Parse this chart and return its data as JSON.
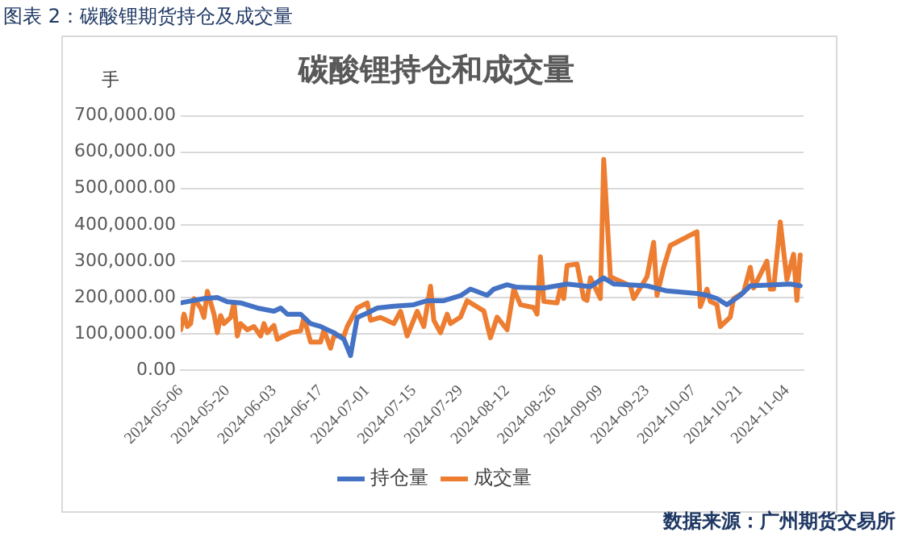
{
  "chart_data": {
    "type": "line",
    "title": "图表 2：碳酸锂期货持仓及成交量",
    "subtitle": "碳酸锂持仓和成交量",
    "ylabel": "手",
    "annotations": [
      "数据来源：广州期货交易所"
    ],
    "xlim": [
      "2024-05-06",
      "2024-11-09"
    ],
    "xticks": [
      "2024-05-06",
      "2024-05-20",
      "2024-06-03",
      "2024-06-17",
      "2024-07-01",
      "2024-07-15",
      "2024-07-29",
      "2024-08-12",
      "2024-08-26",
      "2024-09-09",
      "2024-09-23",
      "2024-10-07",
      "2024-10-21",
      "2024-11-04"
    ],
    "ylim": [
      0,
      700000
    ],
    "yticks": [
      {
        "value": 0,
        "label": "0.00"
      },
      {
        "value": 100000,
        "label": "100,000.00"
      },
      {
        "value": 200000,
        "label": "200,000.00"
      },
      {
        "value": 300000,
        "label": "300,000.00"
      },
      {
        "value": 400000,
        "label": "400,000.00"
      },
      {
        "value": 500000,
        "label": "500,000.00"
      },
      {
        "value": 600000,
        "label": "600,000.00"
      },
      {
        "value": 700000,
        "label": "700,000.00"
      }
    ],
    "grid": "y",
    "legend": "bottom",
    "marker": "none",
    "line_style": "solid",
    "series": [
      {
        "name": "持仓量",
        "color": "#4472c4",
        "x": [
          "2024-05-06",
          "2024-05-13",
          "2024-05-17",
          "2024-05-20",
          "2024-05-24",
          "2024-05-29",
          "2024-06-03",
          "2024-06-05",
          "2024-06-07",
          "2024-06-11",
          "2024-06-14",
          "2024-06-17",
          "2024-06-21",
          "2024-06-24",
          "2024-06-26",
          "2024-06-28",
          "2024-07-01",
          "2024-07-04",
          "2024-07-09",
          "2024-07-15",
          "2024-07-19",
          "2024-07-24",
          "2024-07-29",
          "2024-08-01",
          "2024-08-06",
          "2024-08-08",
          "2024-08-12",
          "2024-08-15",
          "2024-08-23",
          "2024-08-30",
          "2024-09-06",
          "2024-09-10",
          "2024-09-13",
          "2024-09-23",
          "2024-09-29",
          "2024-10-08",
          "2024-10-11",
          "2024-10-14",
          "2024-10-17",
          "2024-10-21",
          "2024-10-24",
          "2024-10-31",
          "2024-11-05",
          "2024-11-08"
        ],
        "values": [
          185000,
          197000,
          200000,
          188000,
          185000,
          171000,
          162000,
          171000,
          154000,
          154000,
          128000,
          120000,
          103000,
          85000,
          40000,
          145000,
          157000,
          171000,
          176000,
          180000,
          191000,
          191000,
          205000,
          223000,
          206000,
          223000,
          235000,
          228000,
          226000,
          237000,
          230000,
          254000,
          237000,
          232000,
          218000,
          211000,
          206000,
          197000,
          180000,
          206000,
          232000,
          235000,
          237000,
          232000
        ]
      },
      {
        "name": "成交量",
        "color": "#ed7d31",
        "x": [
          "2024-05-06",
          "2024-05-07",
          "2024-05-08",
          "2024-05-09",
          "2024-05-10",
          "2024-05-12",
          "2024-05-13",
          "2024-05-14",
          "2024-05-16",
          "2024-05-17",
          "2024-05-18",
          "2024-05-19",
          "2024-05-21",
          "2024-05-22",
          "2024-05-23",
          "2024-05-24",
          "2024-05-26",
          "2024-05-28",
          "2024-05-30",
          "2024-05-31",
          "2024-06-01",
          "2024-06-03",
          "2024-06-04",
          "2024-06-06",
          "2024-06-08",
          "2024-06-11",
          "2024-06-12",
          "2024-06-14",
          "2024-06-17",
          "2024-06-18",
          "2024-06-20",
          "2024-06-21",
          "2024-06-24",
          "2024-06-25",
          "2024-06-28",
          "2024-07-01",
          "2024-07-02",
          "2024-07-05",
          "2024-07-09",
          "2024-07-11",
          "2024-07-13",
          "2024-07-16",
          "2024-07-18",
          "2024-07-20",
          "2024-07-21",
          "2024-07-23",
          "2024-07-25",
          "2024-07-26",
          "2024-07-29",
          "2024-07-31",
          "2024-08-05",
          "2024-08-07",
          "2024-08-09",
          "2024-08-12",
          "2024-08-14",
          "2024-08-16",
          "2024-08-20",
          "2024-08-21",
          "2024-08-22",
          "2024-08-23",
          "2024-08-27",
          "2024-08-28",
          "2024-08-29",
          "2024-08-30",
          "2024-09-02",
          "2024-09-04",
          "2024-09-05",
          "2024-09-06",
          "2024-09-09",
          "2024-09-10",
          "2024-09-12",
          "2024-09-18",
          "2024-09-19",
          "2024-09-23",
          "2024-09-25",
          "2024-09-26",
          "2024-09-28",
          "2024-09-30",
          "2024-10-08",
          "2024-10-09",
          "2024-10-11",
          "2024-10-12",
          "2024-10-14",
          "2024-10-15",
          "2024-10-18",
          "2024-10-19",
          "2024-10-22",
          "2024-10-24",
          "2024-10-25",
          "2024-10-29",
          "2024-10-30",
          "2024-10-31",
          "2024-11-02",
          "2024-11-04",
          "2024-11-06",
          "2024-11-07",
          "2024-11-08"
        ],
        "values": [
          111000,
          154000,
          120000,
          128000,
          197000,
          171000,
          145000,
          217000,
          154000,
          103000,
          150000,
          128000,
          145000,
          185000,
          94000,
          128000,
          111000,
          120000,
          94000,
          128000,
          103000,
          123000,
          85000,
          94000,
          103000,
          108000,
          145000,
          77000,
          77000,
          111000,
          60000,
          94000,
          94000,
          120000,
          171000,
          185000,
          137000,
          145000,
          128000,
          162000,
          94000,
          162000,
          120000,
          231000,
          137000,
          103000,
          154000,
          128000,
          146000,
          191000,
          163000,
          89000,
          146000,
          111000,
          223000,
          180000,
          172000,
          154000,
          312000,
          189000,
          185000,
          226000,
          197000,
          288000,
          292000,
          197000,
          192000,
          254000,
          197000,
          580000,
          257000,
          232000,
          197000,
          257000,
          352000,
          206000,
          283000,
          343000,
          381000,
          175000,
          223000,
          189000,
          180000,
          120000,
          146000,
          197000,
          214000,
          283000,
          226000,
          300000,
          223000,
          223000,
          408000,
          249000,
          319000,
          192000,
          317000
        ]
      }
    ]
  }
}
